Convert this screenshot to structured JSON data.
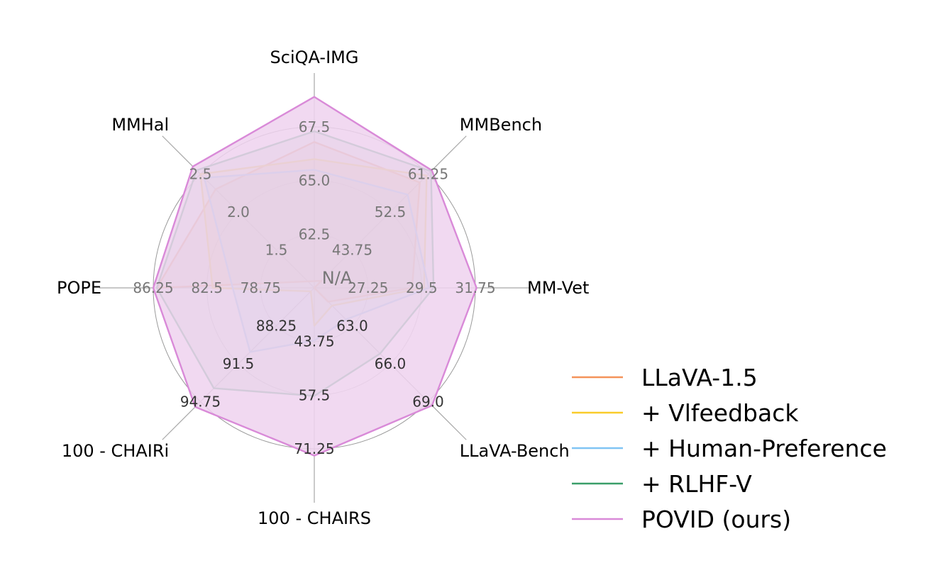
{
  "chart_data": {
    "type": "radar",
    "axes": [
      {
        "label": "SciQA-IMG",
        "ticks": [
          "N/A",
          "62.5",
          "65.0",
          "67.5"
        ],
        "tick_color": "#777777"
      },
      {
        "label": "MMBench",
        "ticks": [
          "N/A",
          "43.75",
          "52.5",
          "61.25"
        ],
        "tick_color": "#777777"
      },
      {
        "label": "MM-Vet",
        "ticks": [
          "N/A",
          "27.25",
          "29.5",
          "31.75"
        ],
        "tick_color": "#777777"
      },
      {
        "label": "LLaVA-Bench",
        "ticks": [
          "N/A",
          "63.0",
          "66.0",
          "69.0"
        ],
        "tick_color": "#333333"
      },
      {
        "label": "100 - CHAIRS",
        "ticks": [
          "N/A",
          "43.75",
          "57.5",
          "71.25"
        ],
        "tick_color": "#333333"
      },
      {
        "label": "100 - CHAIRi",
        "ticks": [
          "N/A",
          "88.25",
          "91.5",
          "94.75"
        ],
        "tick_color": "#333333"
      },
      {
        "label": "POPE",
        "ticks": [
          "N/A",
          "78.75",
          "82.5",
          "86.25"
        ],
        "tick_color": "#777777"
      },
      {
        "label": "MMHal",
        "ticks": [
          "N/A",
          "1.5",
          "2.0",
          "2.5"
        ],
        "tick_color": "#777777"
      }
    ],
    "tick_fractions": [
      0,
      0.3333,
      0.6667,
      1.0
    ],
    "center_label": "N/A",
    "series": [
      {
        "name": "LLaVA-1.5",
        "color": "#f4935a",
        "values": [
          66.8,
          59.3,
          29.1,
          61.1,
          30.0,
          84.4,
          86.0,
          2.3
        ]
      },
      {
        "name": "+ Vlfeedback",
        "color": "#f9cc2a",
        "values": [
          66.0,
          60.9,
          29.6,
          61.4,
          39.7,
          85.3,
          82.1,
          2.5
        ]
      },
      {
        "name": "+ Human-Preference",
        "color": "#80c4f4",
        "values": [
          65.5,
          56.5,
          29.8,
          62.5,
          43.5,
          90.5,
          80.7,
          2.45
        ]
      },
      {
        "name": "+ RLHF-V",
        "color": "#3a9e69",
        "values": [
          67.3,
          61.9,
          30.0,
          65.2,
          57.7,
          93.6,
          86.0,
          2.55
        ]
      },
      {
        "name": "POVID (ours)",
        "color": "#d98ad8",
        "fill": "#eed2ee",
        "values": [
          68.9,
          62.1,
          31.8,
          69.3,
          73.0,
          95.2,
          86.25,
          2.6
        ]
      }
    ],
    "legend_position": "bottom-right",
    "grid": true
  }
}
